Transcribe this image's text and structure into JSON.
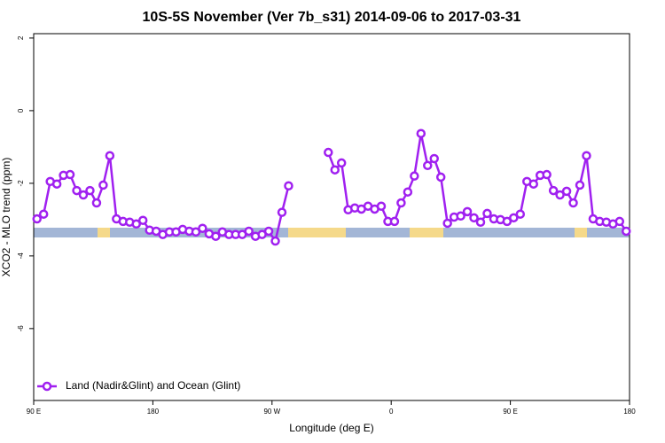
{
  "chart_data": {
    "type": "line",
    "title": "10S-5S November (Ver 7b_s31)   2014-09-06 to 2017-03-31",
    "xlabel": "Longitude (deg E)",
    "ylabel": "XCO2 - MLO trend (ppm)",
    "xlim": [
      90,
      540
    ],
    "ylim": [
      -7.98,
      2.12
    ],
    "xticks": [
      {
        "value": 90,
        "label": "90 E"
      },
      180,
      {
        "value": 270,
        "label": "90 W"
      },
      {
        "value": 360,
        "label": "0"
      },
      {
        "value": 450,
        "label": "90 E"
      },
      {
        "value": 540,
        "label": "180"
      }
    ],
    "yticks": [
      2,
      0,
      -2,
      -4,
      -6
    ],
    "legend": "bottomleft",
    "x": [
      92.5,
      97.5,
      102.5,
      107.5,
      112.5,
      117.5,
      122.5,
      127.5,
      132.5,
      137.5,
      142.5,
      147.5,
      152.5,
      157.5,
      162.5,
      167.5,
      172.5,
      177.5,
      182.5,
      187.5,
      192.5,
      197.5,
      202.5,
      207.5,
      212.5,
      217.5,
      222.5,
      227.5,
      232.5,
      237.5,
      242.5,
      247.5,
      252.5,
      257.5,
      262.5,
      267.5,
      272.5,
      277.5,
      282.5,
      287.5,
      292.5,
      297.5,
      302.5,
      307.5,
      312.5,
      317.5,
      322.5,
      327.5,
      332.5,
      337.5,
      342.5,
      347.5,
      352.5,
      357.5,
      362.5,
      367.5,
      372.5,
      377.5,
      382.5,
      387.5,
      392.5,
      397.5,
      402.5,
      407.5,
      412.5,
      417.5,
      422.5,
      427.5,
      432.5,
      437.5,
      442.5,
      447.5,
      452.5,
      457.5,
      462.5,
      467.5,
      472.5,
      477.5,
      482.5,
      487.5,
      492.5,
      497.5,
      502.5,
      507.5,
      512.5,
      517.5,
      522.5,
      527.5,
      532.5,
      537.5
    ],
    "series": [
      {
        "name": "Land (Nadir&Glint) and Ocean (Glint)",
        "color": "#a020f0",
        "values": [
          -2.98,
          -2.85,
          -1.95,
          -2.02,
          -1.78,
          -1.76,
          -2.2,
          -2.32,
          -2.2,
          -2.54,
          -2.05,
          -1.24,
          -2.98,
          -3.05,
          -3.07,
          -3.12,
          -3.02,
          -3.29,
          -3.32,
          -3.41,
          -3.34,
          -3.34,
          -3.27,
          -3.32,
          -3.34,
          -3.24,
          -3.39,
          -3.46,
          -3.34,
          -3.41,
          -3.41,
          -3.41,
          -3.32,
          -3.46,
          -3.41,
          -3.32,
          -3.59,
          -2.8,
          -2.07,
          null,
          null,
          null,
          null,
          null,
          -1.15,
          -1.63,
          -1.44,
          -2.73,
          -2.68,
          -2.71,
          -2.63,
          -2.71,
          -2.63,
          -3.05,
          -3.05,
          -2.54,
          -2.24,
          -1.8,
          -0.63,
          -1.51,
          -1.32,
          -1.83,
          -3.1,
          -2.93,
          -2.9,
          -2.78,
          -2.95,
          -3.07,
          -2.83,
          -2.98,
          -3.0,
          -3.05,
          -2.95,
          -2.85,
          -1.95,
          -2.02,
          -1.78,
          -1.76,
          -2.2,
          -2.32,
          -2.22,
          -2.54,
          -2.05,
          -1.24,
          -2.98,
          -3.05,
          -3.07,
          -3.12,
          -3.05,
          -3.32
        ]
      }
    ]
  }
}
